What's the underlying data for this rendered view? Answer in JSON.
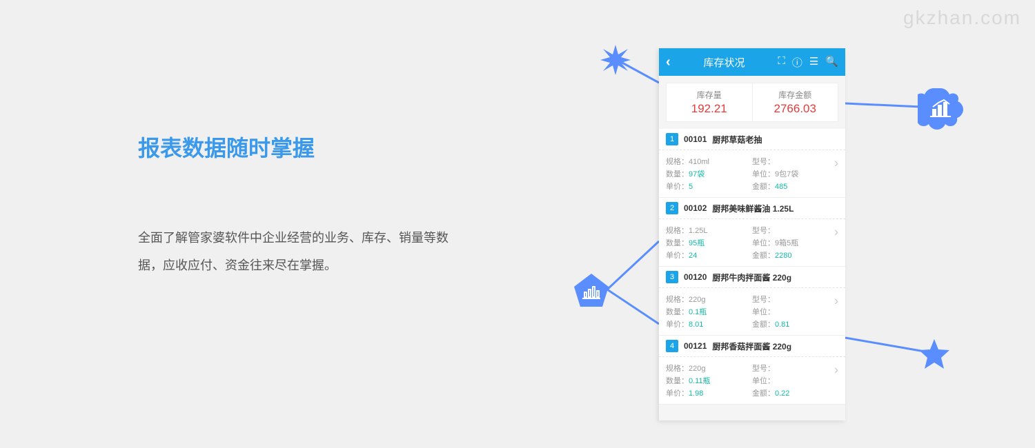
{
  "watermark": "gkzhan.com",
  "hero": {
    "heading": "报表数据随时掌握",
    "description": "全面了解管家婆软件中企业经营的业务、库存、销量等数据，应收应付、资金往来尽在掌握。"
  },
  "app": {
    "header": {
      "title": "库存状况"
    },
    "summary": {
      "qty_label": "库存量",
      "qty_value": "192.21",
      "amount_label": "库存金额",
      "amount_value": "2766.03"
    },
    "labels": {
      "spec": "规格：",
      "model": "型号：",
      "qty": "数量：",
      "unit": "单位：",
      "price": "单价：",
      "amount": "金额："
    },
    "items": [
      {
        "num": "1",
        "code": "00101",
        "name": "厨邦草菇老抽",
        "spec": "410ml",
        "model": "",
        "qty": "97袋",
        "unit": "9包7袋",
        "price": "5",
        "amount": "485"
      },
      {
        "num": "2",
        "code": "00102",
        "name": "厨邦美味鲜酱油 1.25L",
        "spec": "1.25L",
        "model": "",
        "qty": "95瓶",
        "unit": "9箱5瓶",
        "price": "24",
        "amount": "2280"
      },
      {
        "num": "3",
        "code": "00120",
        "name": "厨邦牛肉拌面酱 220g",
        "spec": "220g",
        "model": "",
        "qty": "0.1瓶",
        "unit": "",
        "price": "8.01",
        "amount": "0.81"
      },
      {
        "num": "4",
        "code": "00121",
        "name": "厨邦香菇拌面酱 220g",
        "spec": "220g",
        "model": "",
        "qty": "0.11瓶",
        "unit": "",
        "price": "1.98",
        "amount": "0.22"
      }
    ]
  },
  "colors": {
    "accent": "#3a99ea",
    "header": "#1ba5e8",
    "red": "#e63a3a",
    "teal": "#14b8a6",
    "shape": "#5a8eff"
  }
}
